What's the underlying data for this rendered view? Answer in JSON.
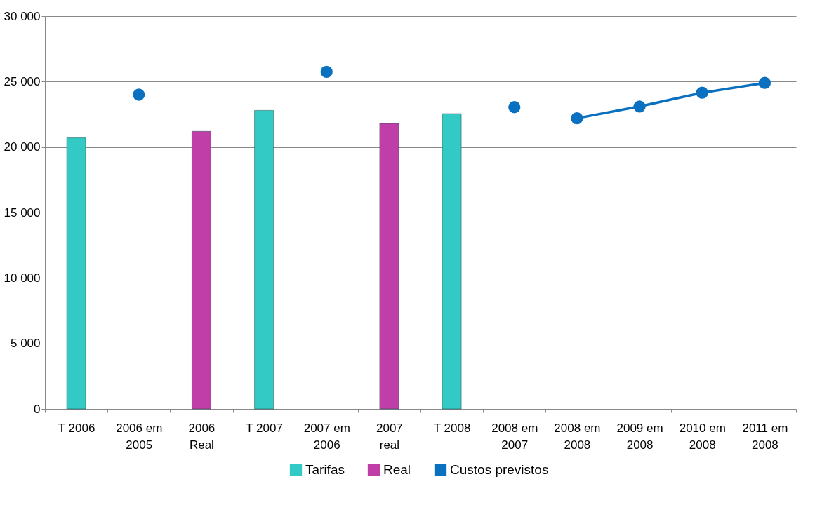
{
  "chart_data": {
    "type": "bar",
    "categories": [
      "T 2006",
      "2006 em\n2005",
      "2006\nReal",
      "T 2007",
      "2007 em\n2006",
      "2007\nreal",
      "T 2008",
      "2008 em\n2007",
      "2008 em\n2008",
      "2009 em\n2008",
      "2010 em\n2008",
      "2011 em\n2008"
    ],
    "series": [
      {
        "name": "Tarifas",
        "color": "#33c9c4",
        "values": [
          20700,
          null,
          null,
          22800,
          null,
          null,
          22550,
          null,
          null,
          null,
          null,
          null
        ]
      },
      {
        "name": "Real",
        "color": "#c03ea8",
        "values": [
          null,
          null,
          21200,
          null,
          null,
          21800,
          null,
          null,
          null,
          null,
          null,
          null
        ]
      },
      {
        "type": "scatter",
        "color": "#0a70c0",
        "values": [
          null,
          24000,
          null,
          null,
          25750,
          null,
          null,
          23050,
          null,
          null,
          null,
          null
        ]
      },
      {
        "name": "Custos  previstos",
        "type": "line",
        "color": "#0a70c0",
        "values": [
          null,
          null,
          null,
          null,
          null,
          null,
          null,
          null,
          22200,
          23100,
          24150,
          24900
        ]
      }
    ],
    "ylim": [
      0,
      30000
    ],
    "yticks": [
      0,
      {
        "value": 5000,
        "label": "5 000"
      },
      {
        "value": 10000,
        "label": "10 000"
      },
      {
        "value": 15000,
        "label": "15 000"
      },
      {
        "value": 20000,
        "label": "20 000"
      },
      {
        "value": 25000,
        "label": "25 000"
      },
      {
        "value": 30000,
        "label": "30 000"
      }
    ],
    "grid": "y",
    "legend": "bottom",
    "marker": "circle"
  }
}
